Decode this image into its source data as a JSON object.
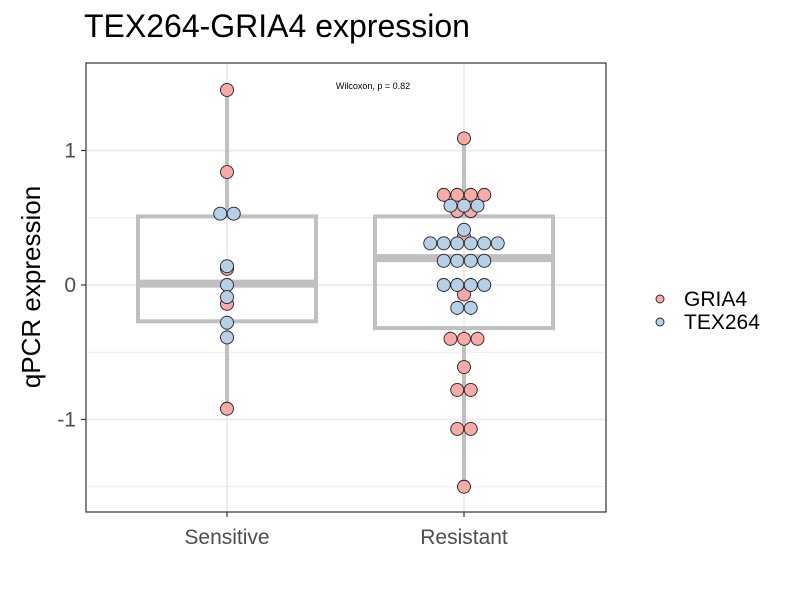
{
  "chart_data": {
    "type": "scatter",
    "title": "TEX264-GRIA4 expression",
    "xlabel": "",
    "ylabel": "qPCR expression",
    "categories": [
      "Sensitive",
      "Resistant"
    ],
    "ylim": [
      -1.5,
      1.45
    ],
    "yticks": [
      -1,
      0,
      1
    ],
    "annotation": "Wilcoxon, p = 0.82",
    "grid": true,
    "legend_position": "right",
    "colors": {
      "GRIA4": "#f8aaa9",
      "TEX264": "#b7d0e6",
      "box": "#c0c0c0",
      "grid": "#ebebeb",
      "panel_border": "#333333"
    },
    "boxes": [
      {
        "category": "Sensitive",
        "q1": -0.27,
        "median": 0.01,
        "q3": 0.51,
        "whisker_low": -0.92,
        "whisker_high": 1.45
      },
      {
        "category": "Resistant",
        "q1": -0.32,
        "median": 0.2,
        "q3": 0.51,
        "whisker_low": -1.5,
        "whisker_high": 1.09
      }
    ],
    "series": [
      {
        "name": "GRIA4",
        "points": [
          {
            "x": "Sensitive",
            "y": 1.45
          },
          {
            "x": "Sensitive",
            "y": 0.84
          },
          {
            "x": "Sensitive",
            "y": 0.12
          },
          {
            "x": "Sensitive",
            "y": -0.14
          },
          {
            "x": "Sensitive",
            "y": -0.92
          },
          {
            "x": "Resistant",
            "y": 1.09
          },
          {
            "x": "Resistant",
            "y": 0.67
          },
          {
            "x": "Resistant",
            "y": 0.67
          },
          {
            "x": "Resistant",
            "y": 0.67
          },
          {
            "x": "Resistant",
            "y": 0.67
          },
          {
            "x": "Resistant",
            "y": 0.55
          },
          {
            "x": "Resistant",
            "y": 0.55
          },
          {
            "x": "Resistant",
            "y": 0.36
          },
          {
            "x": "Resistant",
            "y": -0.07
          },
          {
            "x": "Resistant",
            "y": -0.4
          },
          {
            "x": "Resistant",
            "y": -0.4
          },
          {
            "x": "Resistant",
            "y": -0.4
          },
          {
            "x": "Resistant",
            "y": -0.61
          },
          {
            "x": "Resistant",
            "y": -0.78
          },
          {
            "x": "Resistant",
            "y": -0.78
          },
          {
            "x": "Resistant",
            "y": -1.07
          },
          {
            "x": "Resistant",
            "y": -1.07
          },
          {
            "x": "Resistant",
            "y": -1.5
          }
        ]
      },
      {
        "name": "TEX264",
        "points": [
          {
            "x": "Sensitive",
            "y": 0.53
          },
          {
            "x": "Sensitive",
            "y": 0.53
          },
          {
            "x": "Sensitive",
            "y": 0.14
          },
          {
            "x": "Sensitive",
            "y": 0.0
          },
          {
            "x": "Sensitive",
            "y": -0.09
          },
          {
            "x": "Sensitive",
            "y": -0.28
          },
          {
            "x": "Sensitive",
            "y": -0.39
          },
          {
            "x": "Resistant",
            "y": 0.59
          },
          {
            "x": "Resistant",
            "y": 0.59
          },
          {
            "x": "Resistant",
            "y": 0.59
          },
          {
            "x": "Resistant",
            "y": 0.41
          },
          {
            "x": "Resistant",
            "y": 0.31
          },
          {
            "x": "Resistant",
            "y": 0.31
          },
          {
            "x": "Resistant",
            "y": 0.31
          },
          {
            "x": "Resistant",
            "y": 0.31
          },
          {
            "x": "Resistant",
            "y": 0.31
          },
          {
            "x": "Resistant",
            "y": 0.31
          },
          {
            "x": "Resistant",
            "y": 0.18
          },
          {
            "x": "Resistant",
            "y": 0.18
          },
          {
            "x": "Resistant",
            "y": 0.18
          },
          {
            "x": "Resistant",
            "y": 0.18
          },
          {
            "x": "Resistant",
            "y": 0.0
          },
          {
            "x": "Resistant",
            "y": 0.0
          },
          {
            "x": "Resistant",
            "y": 0.0
          },
          {
            "x": "Resistant",
            "y": 0.0
          },
          {
            "x": "Resistant",
            "y": -0.17
          },
          {
            "x": "Resistant",
            "y": -0.17
          }
        ]
      }
    ]
  }
}
